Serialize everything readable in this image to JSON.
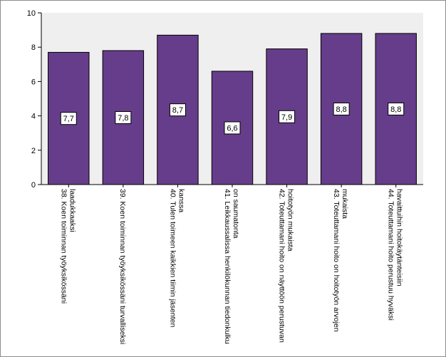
{
  "chart_data": {
    "type": "bar",
    "categories": [
      [
        "38. Koen toiminnan työyksikössäni",
        "laadukkaaksi"
      ],
      [
        "39. Koen toiminnan työyksikössäni turvalliseksi"
      ],
      [
        "40. Tulen toimeen kaikkien tiimin jäsenten",
        "kanssa"
      ],
      [
        "41. Leikkaussalissa henkilökunnan tiedonkulku",
        "on saumatonta"
      ],
      [
        "42. Toteuttamani hoito on näyttöön perustuvan",
        "hoitotyön mukaista"
      ],
      [
        "43. Toteuttamani hoito on hoitotyön arvojen",
        "mukaista"
      ],
      [
        "44. Toteuttamani hoito perustuu hyväksi",
        "havaittuihin hoitokäytänteisiin"
      ]
    ],
    "values": [
      7.7,
      7.8,
      8.7,
      6.6,
      7.9,
      8.8,
      8.8
    ],
    "data_labels": [
      "7,7",
      "7,8",
      "8,7",
      "6,6",
      "7,9",
      "8,8",
      "8,8"
    ],
    "ylim": [
      0,
      10
    ],
    "yticks": [
      0,
      2,
      4,
      6,
      8,
      10
    ],
    "grid": false,
    "bar_color": "#663d8a",
    "plot_background": "#efefef"
  }
}
